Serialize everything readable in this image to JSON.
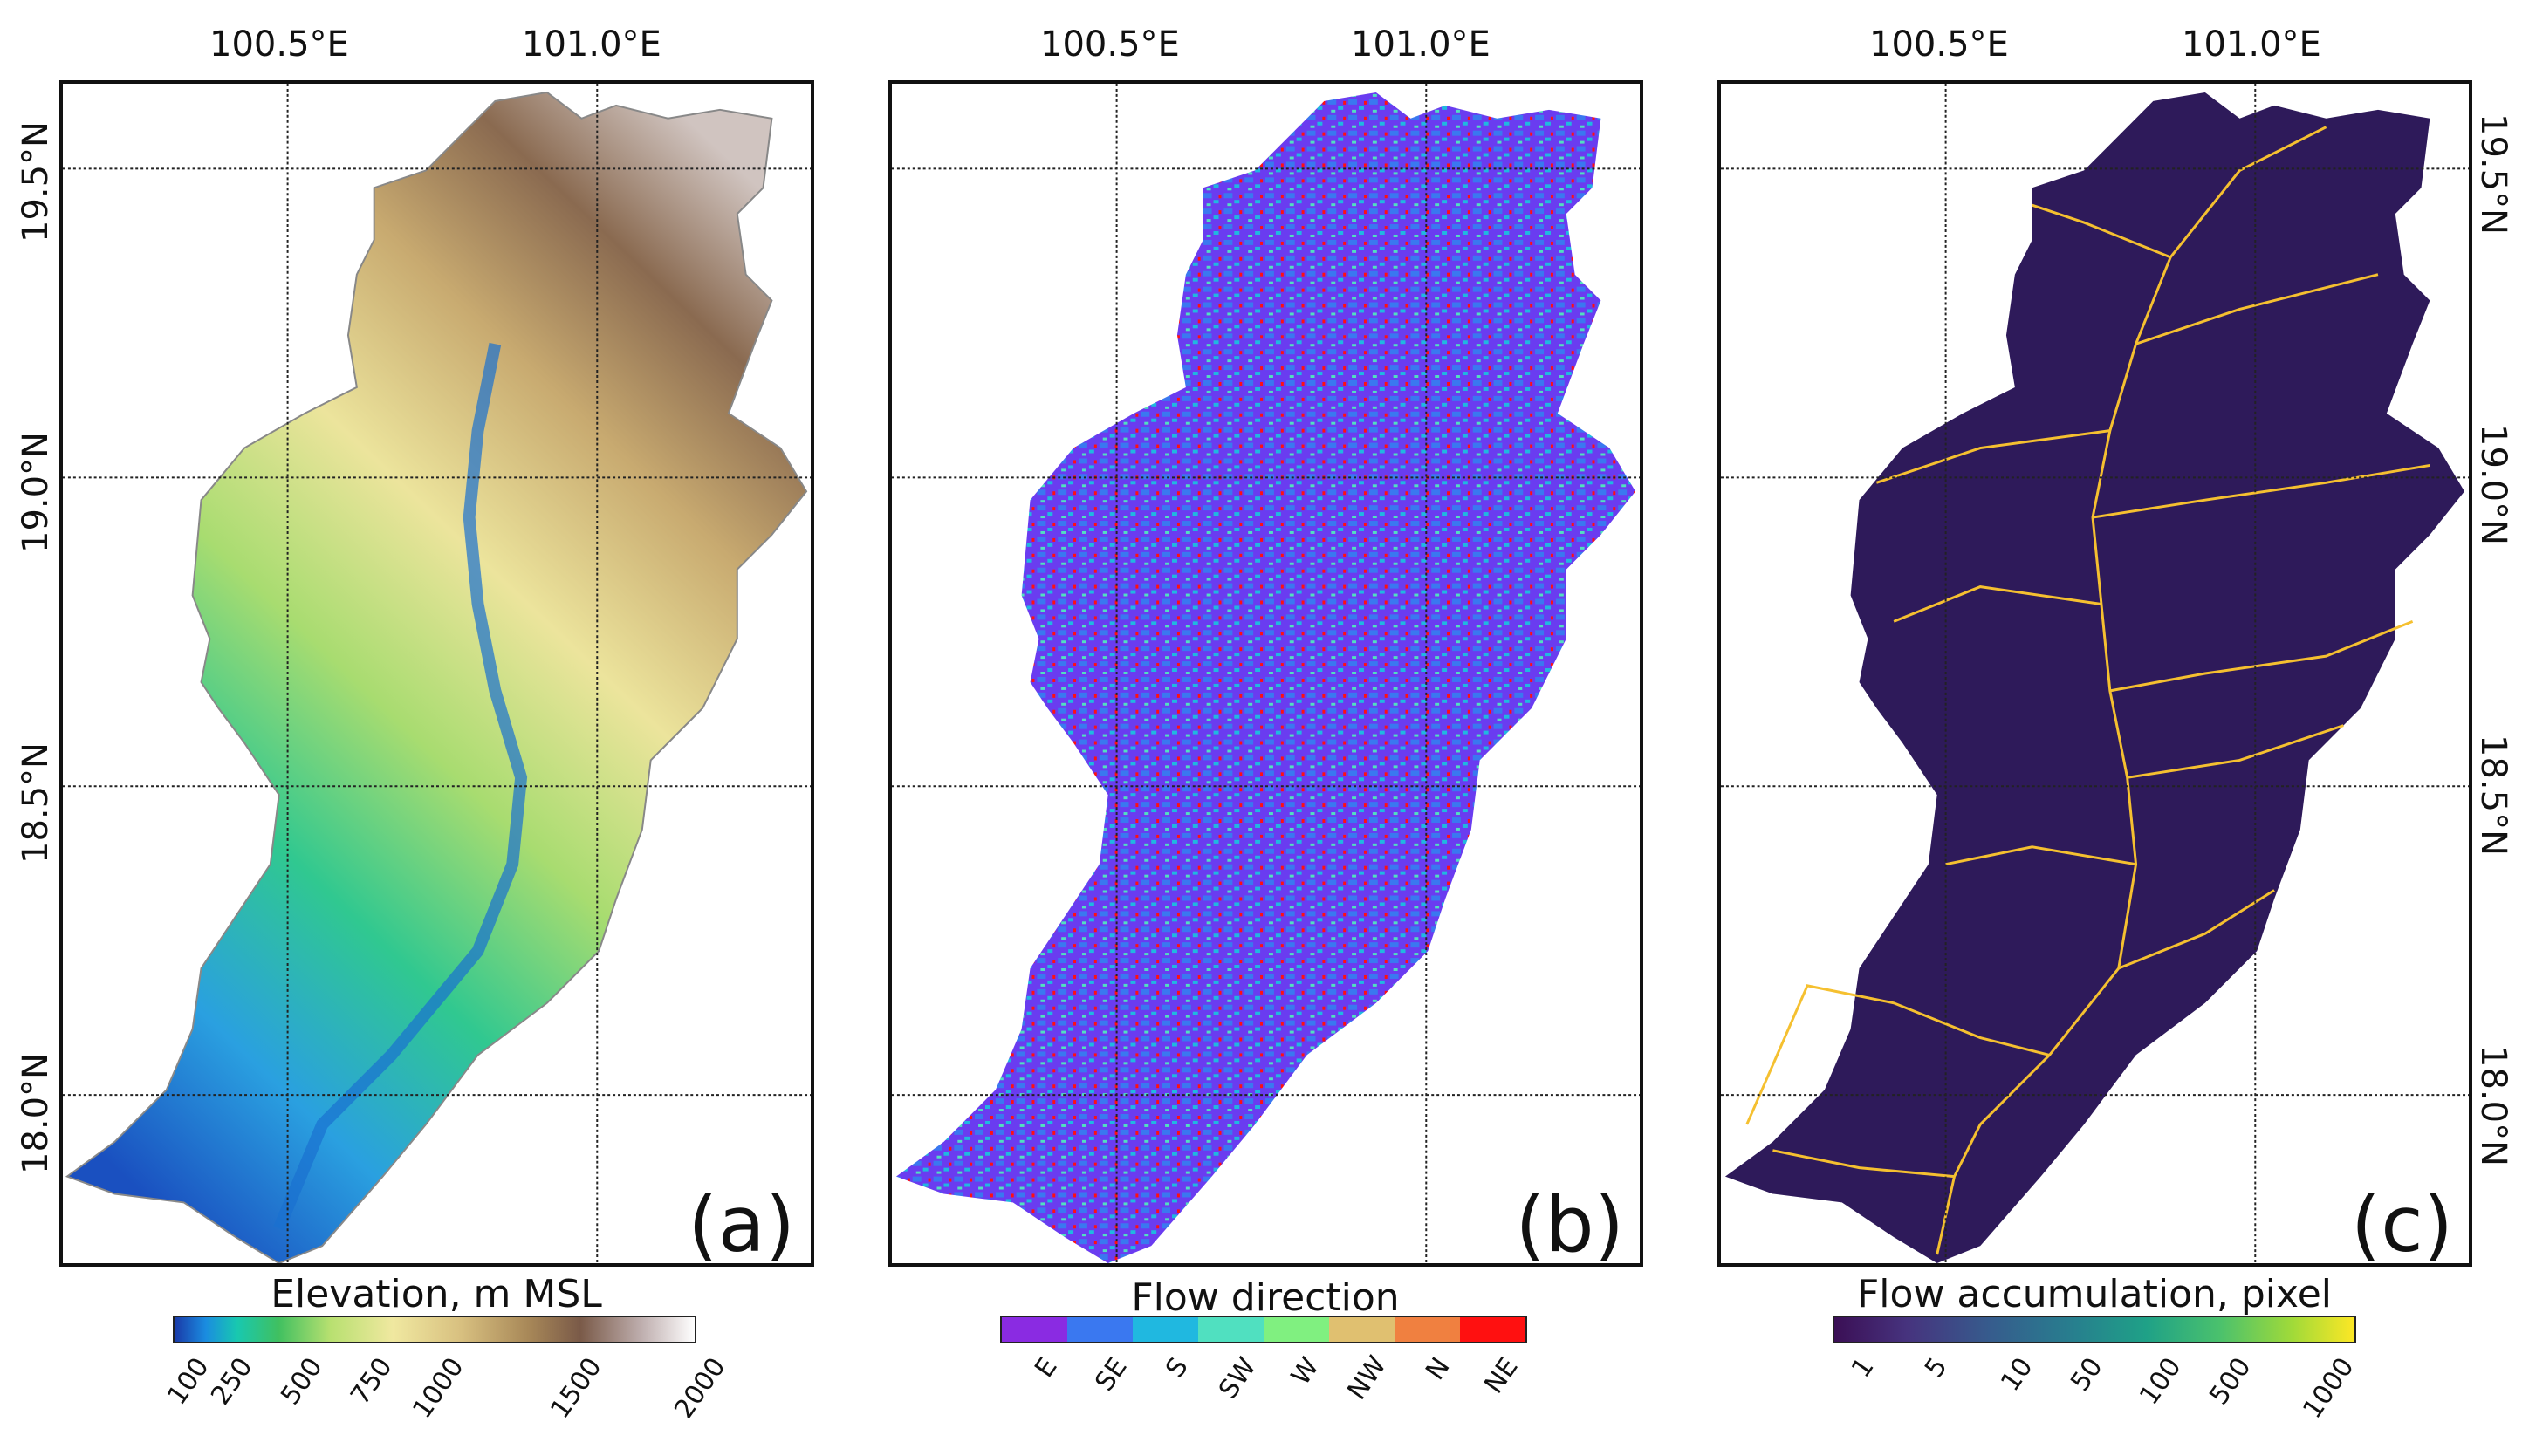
{
  "longitude_ticks": [
    "100.5°E",
    "101.0°E"
  ],
  "latitude_ticks": [
    "19.5°N",
    "19.0°N",
    "18.5°N",
    "18.0°N"
  ],
  "panels": [
    {
      "label": "(a)",
      "colorbar_title": "Elevation, m MSL",
      "colorbar_ticks": [
        "100",
        "250",
        "500",
        "750",
        "1000",
        "1500",
        "2000"
      ]
    },
    {
      "label": "(b)",
      "colorbar_title": "Flow direction",
      "colorbar_ticks": [
        "E",
        "SE",
        "S",
        "SW",
        "W",
        "NW",
        "N",
        "NE"
      ]
    },
    {
      "label": "(c)",
      "colorbar_title": "Flow accumulation, pixel",
      "colorbar_ticks": [
        "1",
        "5",
        "10",
        "50",
        "100",
        "500",
        "1000"
      ]
    }
  ],
  "colors": {
    "elevation_ramp": [
      "#1a3aa8",
      "#1a8ce0",
      "#18c8b0",
      "#40c060",
      "#b8e070",
      "#f0e8a0",
      "#d8c080",
      "#a88858",
      "#7a5a48",
      "#c0b0b0",
      "#ffffff"
    ],
    "flow_direction": [
      "#8a2be2",
      "#3a78f0",
      "#20b8e0",
      "#50e0c0",
      "#80f080",
      "#e0c070",
      "#f08040",
      "#ff1010"
    ],
    "accumulation_ramp": [
      "#3b0f55",
      "#46337e",
      "#365c8d",
      "#277f8e",
      "#1fa187",
      "#4ac16d",
      "#a0da39",
      "#fde725"
    ],
    "basin_fill_a": "#e8e0a0",
    "basin_fill_b": "#6a3cf0",
    "basin_fill_c": "#2e1a5a",
    "river_c": "#f5c030"
  }
}
